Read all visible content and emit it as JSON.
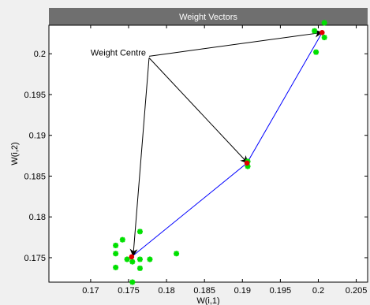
{
  "window": {
    "title": "Weight Vectors"
  },
  "chart_data": {
    "type": "scatter",
    "title": "Weight Vectors",
    "xlabel": "W(i,1)",
    "ylabel": "W(i,2)",
    "xlim": [
      0.1645,
      0.2065
    ],
    "ylim": [
      0.172,
      0.2035
    ],
    "x_ticks": [
      0.17,
      0.175,
      0.18,
      0.185,
      0.19,
      0.195,
      0.2,
      0.205
    ],
    "x_tick_labels": [
      "0.17",
      "0.175",
      "0.18",
      "0.185",
      "0.19",
      "0.195",
      "0.2",
      "0.205"
    ],
    "y_ticks": [
      0.175,
      0.18,
      0.185,
      0.19,
      0.195,
      0.2
    ],
    "y_tick_labels": [
      "0.175",
      "0.18",
      "0.185",
      "0.19",
      "0.195",
      "0.2"
    ],
    "grid": false,
    "colors": {
      "data_points": "#00e000",
      "weight_vectors": "#e00000",
      "path": "#0000ff",
      "arrows": "#000000",
      "axes_background": "#ffffff",
      "figure_background": "#f0f0f0",
      "title_bar": "#6f6f6f"
    },
    "series": [
      {
        "marker": "star",
        "points": [
          [
            0.1755,
            0.172
          ],
          [
            0.1733,
            0.1765
          ],
          [
            0.1733,
            0.1755
          ],
          [
            0.1733,
            0.1738
          ],
          [
            0.1742,
            0.1772
          ],
          [
            0.1748,
            0.1748
          ],
          [
            0.1755,
            0.1745
          ],
          [
            0.1765,
            0.1782
          ],
          [
            0.1765,
            0.1748
          ],
          [
            0.1765,
            0.1737
          ],
          [
            0.1778,
            0.1748
          ],
          [
            0.1813,
            0.1755
          ],
          [
            0.1907,
            0.1862
          ],
          [
            0.1907,
            0.1868
          ],
          [
            0.1995,
            0.2028
          ],
          [
            0.1997,
            0.2002
          ],
          [
            0.2008,
            0.2038
          ],
          [
            0.2008,
            0.202
          ]
        ]
      },
      {
        "marker": "dot",
        "points": [
          [
            0.1754,
            0.1751
          ],
          [
            0.1906,
            0.1866
          ],
          [
            0.2005,
            0.2026
          ]
        ]
      },
      {
        "line": "solid",
        "points": [
          [
            0.1754,
            0.1751
          ],
          [
            0.1906,
            0.1866
          ],
          [
            0.2005,
            0.2026
          ]
        ]
      }
    ],
    "annotations": [
      {
        "text": "Weight Centre",
        "at": [
          0.17,
          0.1998
        ],
        "arrows": [
          {
            "from": [
              0.1777,
              0.1995
            ],
            "to": [
              0.1756,
              0.1752
            ]
          },
          {
            "from": [
              0.1777,
              0.1995
            ],
            "to": [
              0.1907,
              0.1866
            ]
          },
          {
            "from": [
              0.1777,
              0.1997
            ],
            "to": [
              0.2005,
              0.2026
            ]
          }
        ]
      }
    ]
  }
}
